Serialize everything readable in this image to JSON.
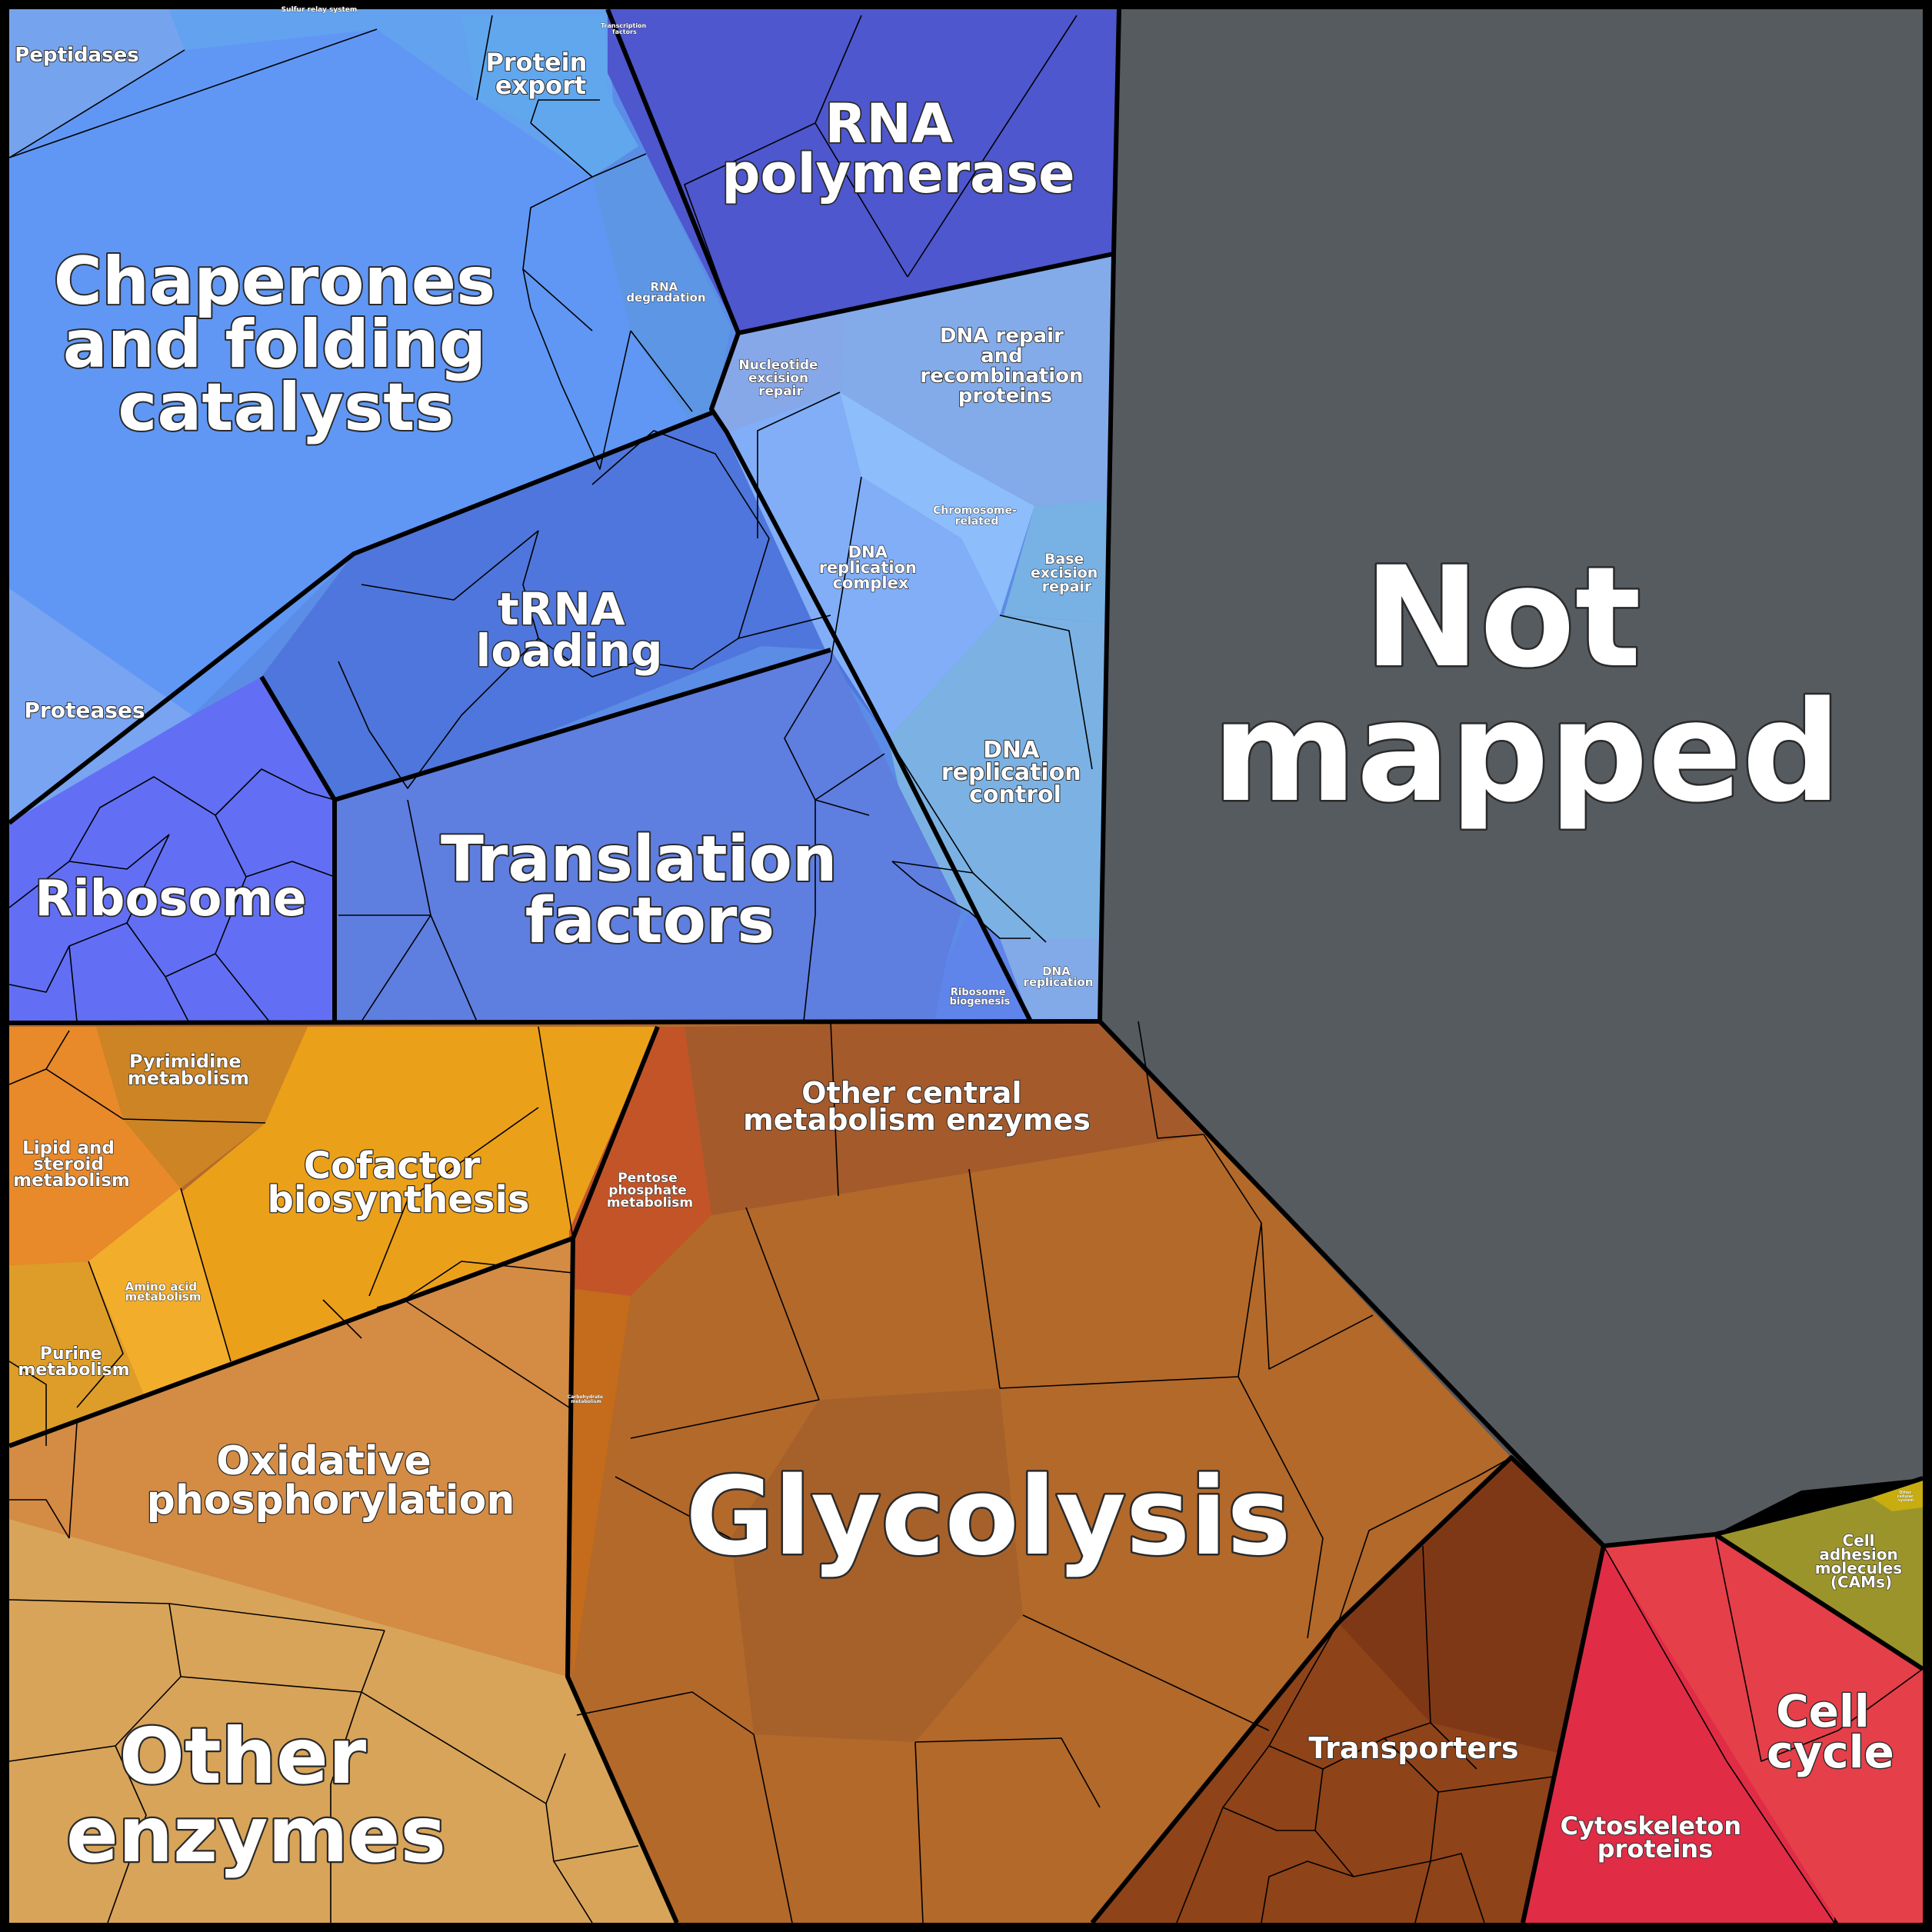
{
  "title": "",
  "colors": {
    "background": "#000000",
    "not_mapped": "#575b5f",
    "genetic_information": "#5f86e3",
    "metabolism": "#b8702c",
    "cellular": "#e23a48",
    "adhesion": "#9b9428"
  },
  "categories": {
    "not_mapped": [
      "Not",
      "mapped"
    ],
    "chaperones": [
      "Chaperones",
      "and folding",
      "catalysts"
    ],
    "rna_polymerase": [
      "RNA",
      "polymerase"
    ],
    "trna_loading": [
      "tRNA",
      "loading"
    ],
    "translation_factors": [
      "Translation",
      "factors"
    ],
    "ribosome": [
      "Ribosome"
    ],
    "peptidases": [
      "Peptidases"
    ],
    "proteases": [
      "Proteases"
    ],
    "protein_export": [
      "Protein",
      "export"
    ],
    "transcription_factors": [
      "Transcription",
      "factors"
    ],
    "sulfur_relay": [
      "Sulfur relay system"
    ],
    "rna_degradation": [
      "RNA",
      "degradation"
    ],
    "nucleotide_excision_repair": [
      "Nucleotide",
      "excision",
      "repair"
    ],
    "dna_repair": [
      "DNA repair",
      "and",
      "recombination",
      "proteins"
    ],
    "chromosome_related": [
      "Chromosome-",
      "related"
    ],
    "base_excision_repair": [
      "Base",
      "excision",
      "repair"
    ],
    "dna_replication_complex": [
      "DNA",
      "replication",
      "complex"
    ],
    "dna_replication_control": [
      "DNA",
      "replication",
      "control"
    ],
    "ribosome_biogenesis": [
      "Ribosome",
      "biogenesis"
    ],
    "dna_replication": [
      "DNA",
      "replication"
    ],
    "pyrimidine": [
      "Pyrimidine",
      "metabolism"
    ],
    "lipid_steroid": [
      "Lipid and",
      "steroid",
      "metabolism"
    ],
    "cofactor": [
      "Cofactor",
      "biosynthesis"
    ],
    "amino_acid": [
      "Amino acid",
      "metabolism"
    ],
    "purine": [
      "Purine",
      "metabolism"
    ],
    "pentose_phosphate": [
      "Pentose",
      "phosphate",
      "metabolism"
    ],
    "other_central": [
      "Other central",
      "metabolism enzymes"
    ],
    "carbohydrate": [
      "Carbohydrate",
      "metabolism"
    ],
    "oxidative_phosphorylation": [
      "Oxidative",
      "phosphorylation"
    ],
    "glycolysis": [
      "Glycolysis"
    ],
    "other_enzymes": [
      "Other",
      "enzymes"
    ],
    "transporters": [
      "Transporters"
    ],
    "cell_adhesion": [
      "Cell",
      "adhesion",
      "molecules",
      "(CAMs)"
    ],
    "cell_cycle": [
      "Cell",
      "cycle"
    ],
    "cytoskeleton": [
      "Cytoskeleton",
      "proteins"
    ],
    "other_cellular": [
      "Other",
      "cellular",
      "system"
    ]
  }
}
